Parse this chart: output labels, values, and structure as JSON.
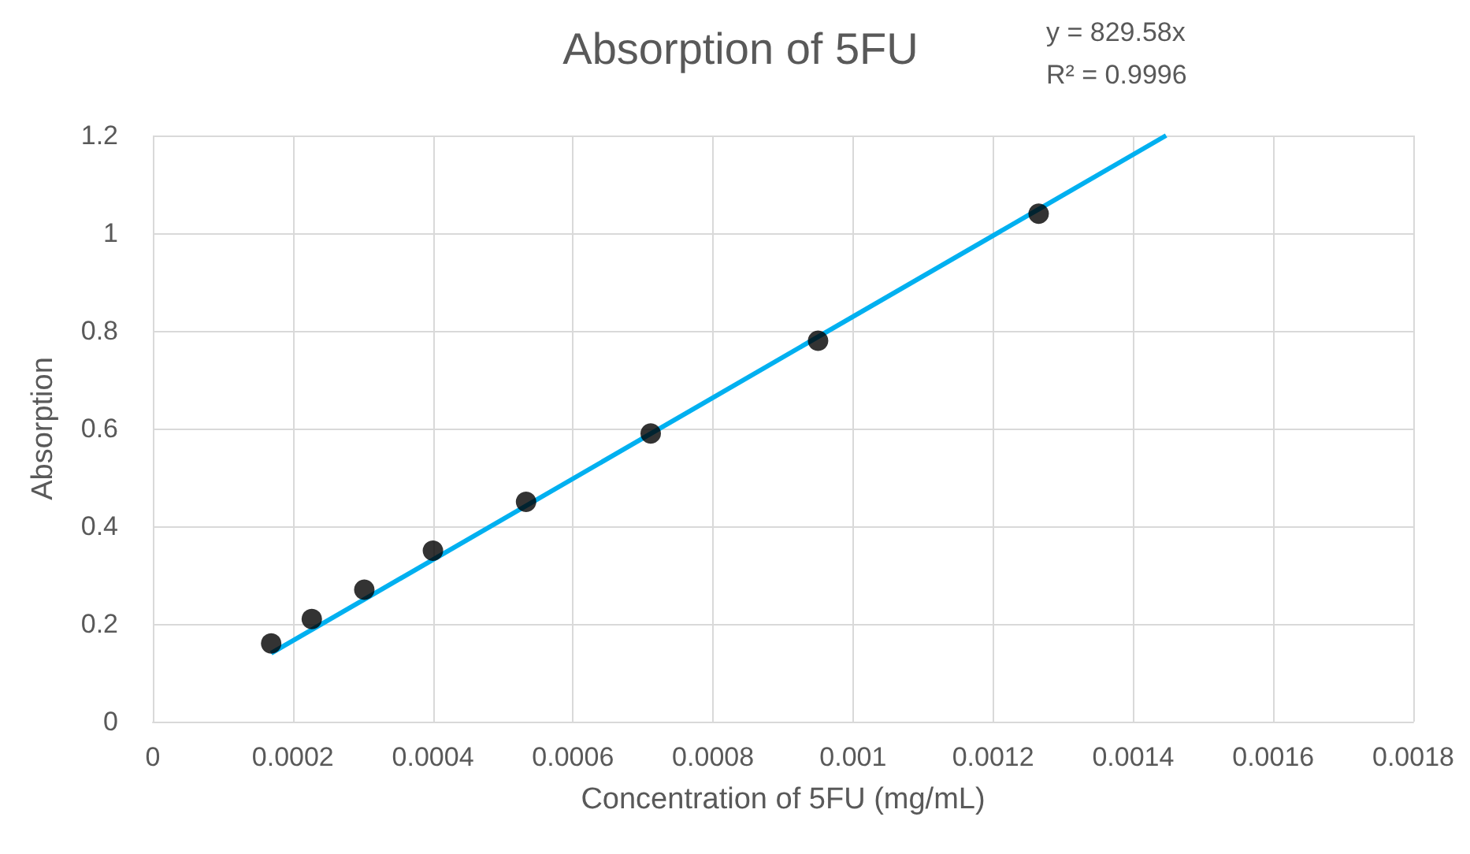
{
  "chart_data": {
    "type": "scatter",
    "title": "Absorption of 5FU",
    "xlabel": "Concentration of 5FU (mg/mL)",
    "ylabel": "Absorption",
    "annotations": [
      "y = 829.58x",
      "R² = 0.9996"
    ],
    "series": [
      {
        "color": "#000000",
        "marker": "circle",
        "x": [
          0.000169,
          0.000227,
          0.000302,
          0.0004,
          0.000533,
          0.000711,
          0.00095,
          0.001265
        ],
        "values": [
          0.16,
          0.21,
          0.27,
          0.35,
          0.45,
          0.59,
          0.78,
          1.04
        ]
      },
      {
        "type": "line",
        "marker": "none",
        "color": "#00b0f0",
        "x": [
          0.000169,
          0.001447
        ],
        "values": [
          0.14,
          1.2
        ]
      }
    ],
    "xlim": [
      0,
      0.0018
    ],
    "xticks": [
      0,
      0.0002,
      0.0004,
      0.0006,
      0.0008,
      0.001,
      0.0012,
      0.0014,
      0.0016,
      0.0018
    ],
    "ylim": [
      0,
      1.2
    ],
    "yticks": [
      0,
      0.2,
      0.4,
      0.6,
      0.8,
      1,
      1.2
    ],
    "grid": true
  }
}
